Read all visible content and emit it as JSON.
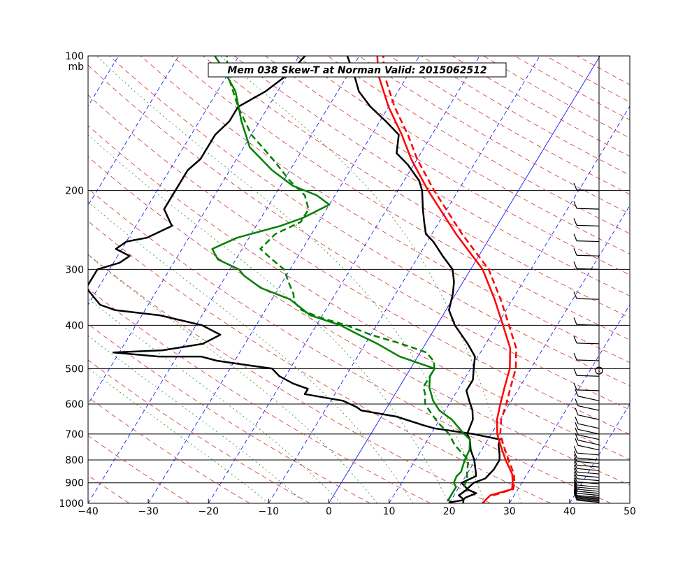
{
  "chart_data": {
    "type": "line",
    "chart_kind": "skew-T log-p sounding",
    "title": "Mem 038  Skew-T at Norman   Valid: 2015062512",
    "pressure_unit": "mb",
    "y_scale": "log",
    "ylim": [
      1000,
      100
    ],
    "xlim": [
      -40,
      50
    ],
    "x_ticks": [
      -40,
      -30,
      -20,
      -10,
      0,
      10,
      20,
      30,
      40,
      50
    ],
    "pressure_levels": [
      1000,
      900,
      800,
      700,
      600,
      500,
      400,
      300,
      200,
      100
    ],
    "grid": true,
    "colors": {
      "temperature": "#000000",
      "dewpoint": "#008000",
      "parcel": "#ff0000",
      "isotherm": "#0000ff",
      "dry_adiabat": "#cc3333",
      "moist_adiabat": "#2e8b2e",
      "barb": "#000000"
    },
    "series": [
      {
        "role": "temperature",
        "style": "solid",
        "points": [
          [
            1000,
            22.3
          ],
          [
            980,
            22
          ],
          [
            960,
            20.8
          ],
          [
            930,
            21.6
          ],
          [
            900,
            20
          ],
          [
            870,
            21.7
          ],
          [
            860,
            21.5
          ],
          [
            800,
            19.8
          ],
          [
            760,
            18.2
          ],
          [
            720,
            17
          ],
          [
            700,
            16
          ],
          [
            650,
            15.5
          ],
          [
            620,
            14.5
          ],
          [
            590,
            13
          ],
          [
            560,
            11.5
          ],
          [
            530,
            11.5
          ],
          [
            500,
            10.5
          ],
          [
            470,
            9.5
          ],
          [
            440,
            7
          ],
          [
            400,
            3
          ],
          [
            370,
            0.5
          ],
          [
            340,
            -0.5
          ],
          [
            320,
            -1.5
          ],
          [
            300,
            -3
          ],
          [
            280,
            -6
          ],
          [
            260,
            -9
          ],
          [
            250,
            -11
          ],
          [
            235,
            -12.5
          ],
          [
            220,
            -14
          ],
          [
            200,
            -16
          ],
          [
            190,
            -17.5
          ],
          [
            175,
            -21
          ],
          [
            165,
            -24
          ],
          [
            150,
            -25.5
          ],
          [
            140,
            -29
          ],
          [
            130,
            -33
          ],
          [
            120,
            -36.5
          ],
          [
            110,
            -39
          ],
          [
            100,
            -42
          ]
        ]
      },
      {
        "role": "temperature-alt",
        "style": "solid",
        "points": [
          [
            995,
            20
          ],
          [
            985,
            21.8
          ],
          [
            970,
            22.2
          ],
          [
            950,
            23.5
          ],
          [
            930,
            21.5
          ],
          [
            900,
            22
          ],
          [
            880,
            23.5
          ],
          [
            840,
            24
          ],
          [
            800,
            24
          ],
          [
            780,
            23.5
          ],
          [
            740,
            22.3
          ],
          [
            720,
            22
          ],
          [
            700,
            17
          ],
          [
            680,
            10
          ],
          [
            670,
            8
          ],
          [
            640,
            2.5
          ],
          [
            620,
            -4
          ],
          [
            610,
            -5
          ],
          [
            590,
            -8
          ],
          [
            570,
            -15
          ],
          [
            555,
            -15
          ],
          [
            540,
            -18
          ],
          [
            520,
            -21
          ],
          [
            500,
            -23
          ],
          [
            490,
            -28
          ],
          [
            480,
            -33
          ],
          [
            470,
            -36
          ],
          [
            470,
            -43
          ],
          [
            460,
            -51
          ],
          [
            455,
            -43
          ],
          [
            440,
            -37
          ],
          [
            420,
            -35
          ],
          [
            400,
            -39
          ],
          [
            380,
            -47
          ],
          [
            370,
            -55
          ],
          [
            360,
            -58
          ],
          [
            330,
            -62
          ],
          [
            300,
            -62
          ],
          [
            290,
            -59
          ],
          [
            280,
            -58
          ],
          [
            270,
            -61
          ],
          [
            260,
            -60
          ],
          [
            255,
            -57
          ],
          [
            240,
            -54
          ],
          [
            220,
            -57
          ],
          [
            200,
            -57
          ],
          [
            180,
            -57
          ],
          [
            170,
            -56
          ],
          [
            150,
            -56
          ],
          [
            140,
            -55
          ],
          [
            130,
            -55
          ],
          [
            120,
            -52
          ],
          [
            110,
            -50
          ],
          [
            100,
            -49
          ]
        ]
      },
      {
        "role": "dewpoint",
        "style": "solid",
        "points": [
          [
            990,
            19.5
          ],
          [
            960,
            19.5
          ],
          [
            920,
            19.5
          ],
          [
            900,
            18.7
          ],
          [
            870,
            18.5
          ],
          [
            850,
            18.8
          ],
          [
            800,
            18.2
          ],
          [
            760,
            18
          ],
          [
            720,
            17
          ],
          [
            700,
            15.5
          ],
          [
            650,
            12
          ],
          [
            620,
            9
          ],
          [
            590,
            7
          ],
          [
            550,
            5
          ],
          [
            520,
            4
          ],
          [
            500,
            4
          ],
          [
            470,
            -3
          ],
          [
            440,
            -8
          ],
          [
            420,
            -12
          ],
          [
            400,
            -16
          ],
          [
            380,
            -22
          ],
          [
            350,
            -27
          ],
          [
            330,
            -33
          ],
          [
            310,
            -37
          ],
          [
            300,
            -38.5
          ],
          [
            285,
            -43
          ],
          [
            270,
            -45
          ],
          [
            255,
            -42
          ],
          [
            240,
            -36
          ],
          [
            230,
            -33
          ],
          [
            215,
            -30
          ],
          [
            205,
            -33
          ],
          [
            195,
            -38
          ],
          [
            180,
            -43
          ],
          [
            160,
            -49
          ],
          [
            140,
            -53
          ],
          [
            120,
            -57
          ],
          [
            105,
            -62
          ],
          [
            100,
            -64
          ]
        ]
      },
      {
        "role": "dewpoint-alt",
        "style": "dashed",
        "points": [
          [
            920,
            20.8
          ],
          [
            880,
            20.5
          ],
          [
            860,
            20
          ],
          [
            800,
            18.8
          ],
          [
            740,
            15
          ],
          [
            700,
            13
          ],
          [
            660,
            10
          ],
          [
            630,
            8
          ],
          [
            600,
            6
          ],
          [
            570,
            5
          ],
          [
            550,
            4
          ],
          [
            520,
            4
          ],
          [
            500,
            4
          ],
          [
            480,
            3
          ],
          [
            460,
            1
          ],
          [
            440,
            -4
          ],
          [
            420,
            -10
          ],
          [
            400,
            -15
          ],
          [
            385,
            -20
          ],
          [
            370,
            -24
          ],
          [
            355,
            -26
          ],
          [
            340,
            -27
          ],
          [
            320,
            -29
          ],
          [
            300,
            -31
          ],
          [
            285,
            -34
          ],
          [
            270,
            -37
          ],
          [
            250,
            -36
          ],
          [
            235,
            -33
          ],
          [
            220,
            -33
          ],
          [
            205,
            -35
          ],
          [
            190,
            -39
          ],
          [
            170,
            -44
          ],
          [
            150,
            -50
          ],
          [
            130,
            -55
          ],
          [
            110,
            -60
          ],
          [
            100,
            -62
          ]
        ]
      },
      {
        "role": "parcel",
        "style": "solid",
        "points": [
          [
            1000,
            25.5
          ],
          [
            960,
            26
          ],
          [
            930,
            29
          ],
          [
            900,
            28.5
          ],
          [
            860,
            27.5
          ],
          [
            800,
            25
          ],
          [
            750,
            23
          ],
          [
            700,
            21
          ],
          [
            650,
            19.5
          ],
          [
            600,
            18.5
          ],
          [
            550,
            17.5
          ],
          [
            500,
            16.5
          ],
          [
            450,
            14.5
          ],
          [
            400,
            11
          ],
          [
            350,
            7
          ],
          [
            300,
            2
          ],
          [
            250,
            -6
          ],
          [
            200,
            -15
          ],
          [
            170,
            -21
          ],
          [
            150,
            -25
          ],
          [
            130,
            -30
          ],
          [
            110,
            -35
          ],
          [
            100,
            -37
          ]
        ]
      },
      {
        "role": "parcel-alt",
        "style": "dashed",
        "points": [
          [
            960,
            26.5
          ],
          [
            930,
            29.2
          ],
          [
            900,
            28.8
          ],
          [
            860,
            27.8
          ],
          [
            800,
            25.5
          ],
          [
            750,
            23.5
          ],
          [
            700,
            21.5
          ],
          [
            650,
            20.2
          ],
          [
            600,
            19.5
          ],
          [
            550,
            18.5
          ],
          [
            500,
            17.5
          ],
          [
            450,
            15.5
          ],
          [
            400,
            12
          ],
          [
            350,
            8
          ],
          [
            300,
            3
          ],
          [
            250,
            -5
          ],
          [
            200,
            -14
          ],
          [
            170,
            -20
          ],
          [
            150,
            -24
          ],
          [
            130,
            -29
          ],
          [
            110,
            -34
          ],
          [
            100,
            -36
          ]
        ]
      }
    ],
    "wind_barbs_count": 40
  }
}
